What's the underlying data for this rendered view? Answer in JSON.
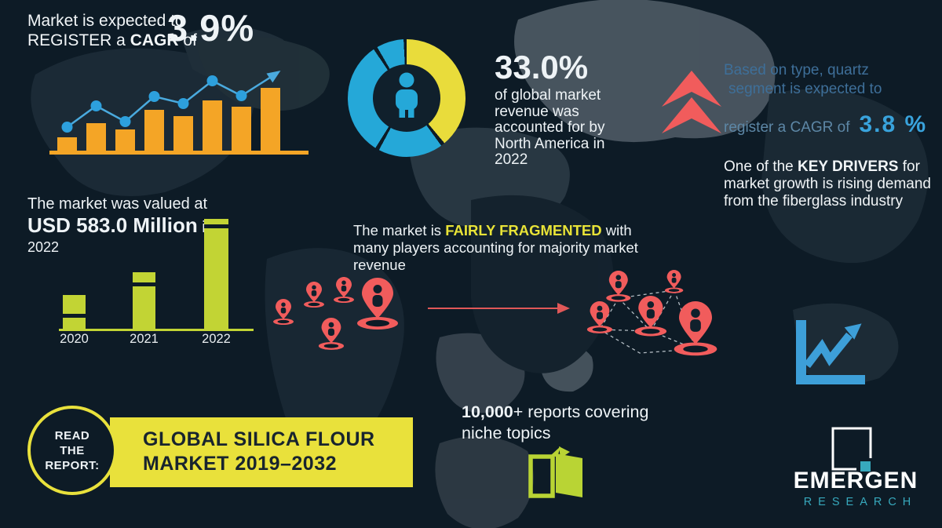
{
  "colors": {
    "background": "#0d1b26",
    "orange": "#f4a526",
    "line_blue": "#4aaade",
    "dot_blue": "#2da0dd",
    "donut_blue": "#25a8d8",
    "donut_yellow": "#e9dc3b",
    "green": "#c2d434",
    "banner_yellow": "#e9e13b",
    "red": "#f15c5c",
    "arrow_red": "#e05858",
    "steel_text": "#3e6f99",
    "bright_blue": "#39a3dc",
    "teal": "#37a9bd"
  },
  "stat_cagr": {
    "line1": "Market is expected to",
    "line2_pre": "REGISTER a ",
    "line2_bold": "CAGR",
    "line2_post": " of",
    "value": "3.9%"
  },
  "donut": {
    "value": "33.0%",
    "desc": "of global market revenue was accounted for by North America in 2022",
    "segments": [
      {
        "from": 0,
        "to": 140,
        "color": "#e9dc3b"
      },
      {
        "from": 144,
        "to": 208,
        "color": "#25a8d8"
      },
      {
        "from": 212,
        "to": 326,
        "color": "#25a8d8"
      },
      {
        "from": 330,
        "to": 357,
        "color": "#25a8d8"
      }
    ]
  },
  "quartz": {
    "line1": "Based on type, quartz",
    "line2": "segment is expected to",
    "line3": "register a CAGR of",
    "value": "3.8 %"
  },
  "key_driver": {
    "pre": "One of the ",
    "bold": "KEY DRIVERS",
    "post": " for market growth is rising demand from the fiberglass industry"
  },
  "valuation": {
    "line1": "The market was valued at",
    "bold": "USD 583.0 Million",
    "post": " in",
    "line3": "2022"
  },
  "fragmented": {
    "pre": "The market is ",
    "highlight": "FAIRLY FRAGMENTED",
    "post": " with many players accounting for majority market revenue"
  },
  "read_report": {
    "circle_l1": "READ",
    "circle_l2": "THE",
    "circle_l3": "REPORT:",
    "title_line1": "GLOBAL SILICA FLOUR",
    "title_line2": "MARKET 2019–2032"
  },
  "reports": {
    "bold": "10,000",
    "rest": "+ reports covering niche topics"
  },
  "brand": {
    "name": "EMERGEN",
    "sub": "RESEARCH"
  },
  "chart_data": [
    {
      "type": "bar",
      "name": "cagr-growth-trend",
      "title": "Market is expected to REGISTER a CAGR of 3.9%",
      "categories": [
        "1",
        "2",
        "3",
        "4",
        "5",
        "6",
        "7",
        "8"
      ],
      "series": [
        {
          "name": "bars",
          "values": [
            17,
            35,
            27,
            52,
            44,
            64,
            56,
            80
          ]
        },
        {
          "name": "trend-line",
          "values": [
            30,
            57,
            37,
            69,
            60,
            89,
            70
          ]
        }
      ],
      "units": "relative height (decorative, unlabeled axis)",
      "legend": "none",
      "grid": false
    },
    {
      "type": "pie",
      "name": "north-america-revenue-share",
      "title": "33.0% of global market revenue was accounted for by North America in 2022",
      "labels": [
        "North America",
        "Rest of world"
      ],
      "values": [
        33.0,
        67.0
      ],
      "colors": [
        "#e9dc3b",
        "#25a8d8"
      ],
      "legend": "none"
    },
    {
      "type": "bar",
      "name": "market-value-by-year",
      "title": "The market was valued at USD 583.0 Million in 2022",
      "categories": [
        "2020",
        "2021",
        "2022"
      ],
      "values": [
        43,
        72,
        140
      ],
      "units": "relative height; 2022 bar = USD 583.0 Million",
      "cap_offsets": [
        24,
        13,
        7
      ],
      "legend": "none",
      "grid": false
    }
  ]
}
